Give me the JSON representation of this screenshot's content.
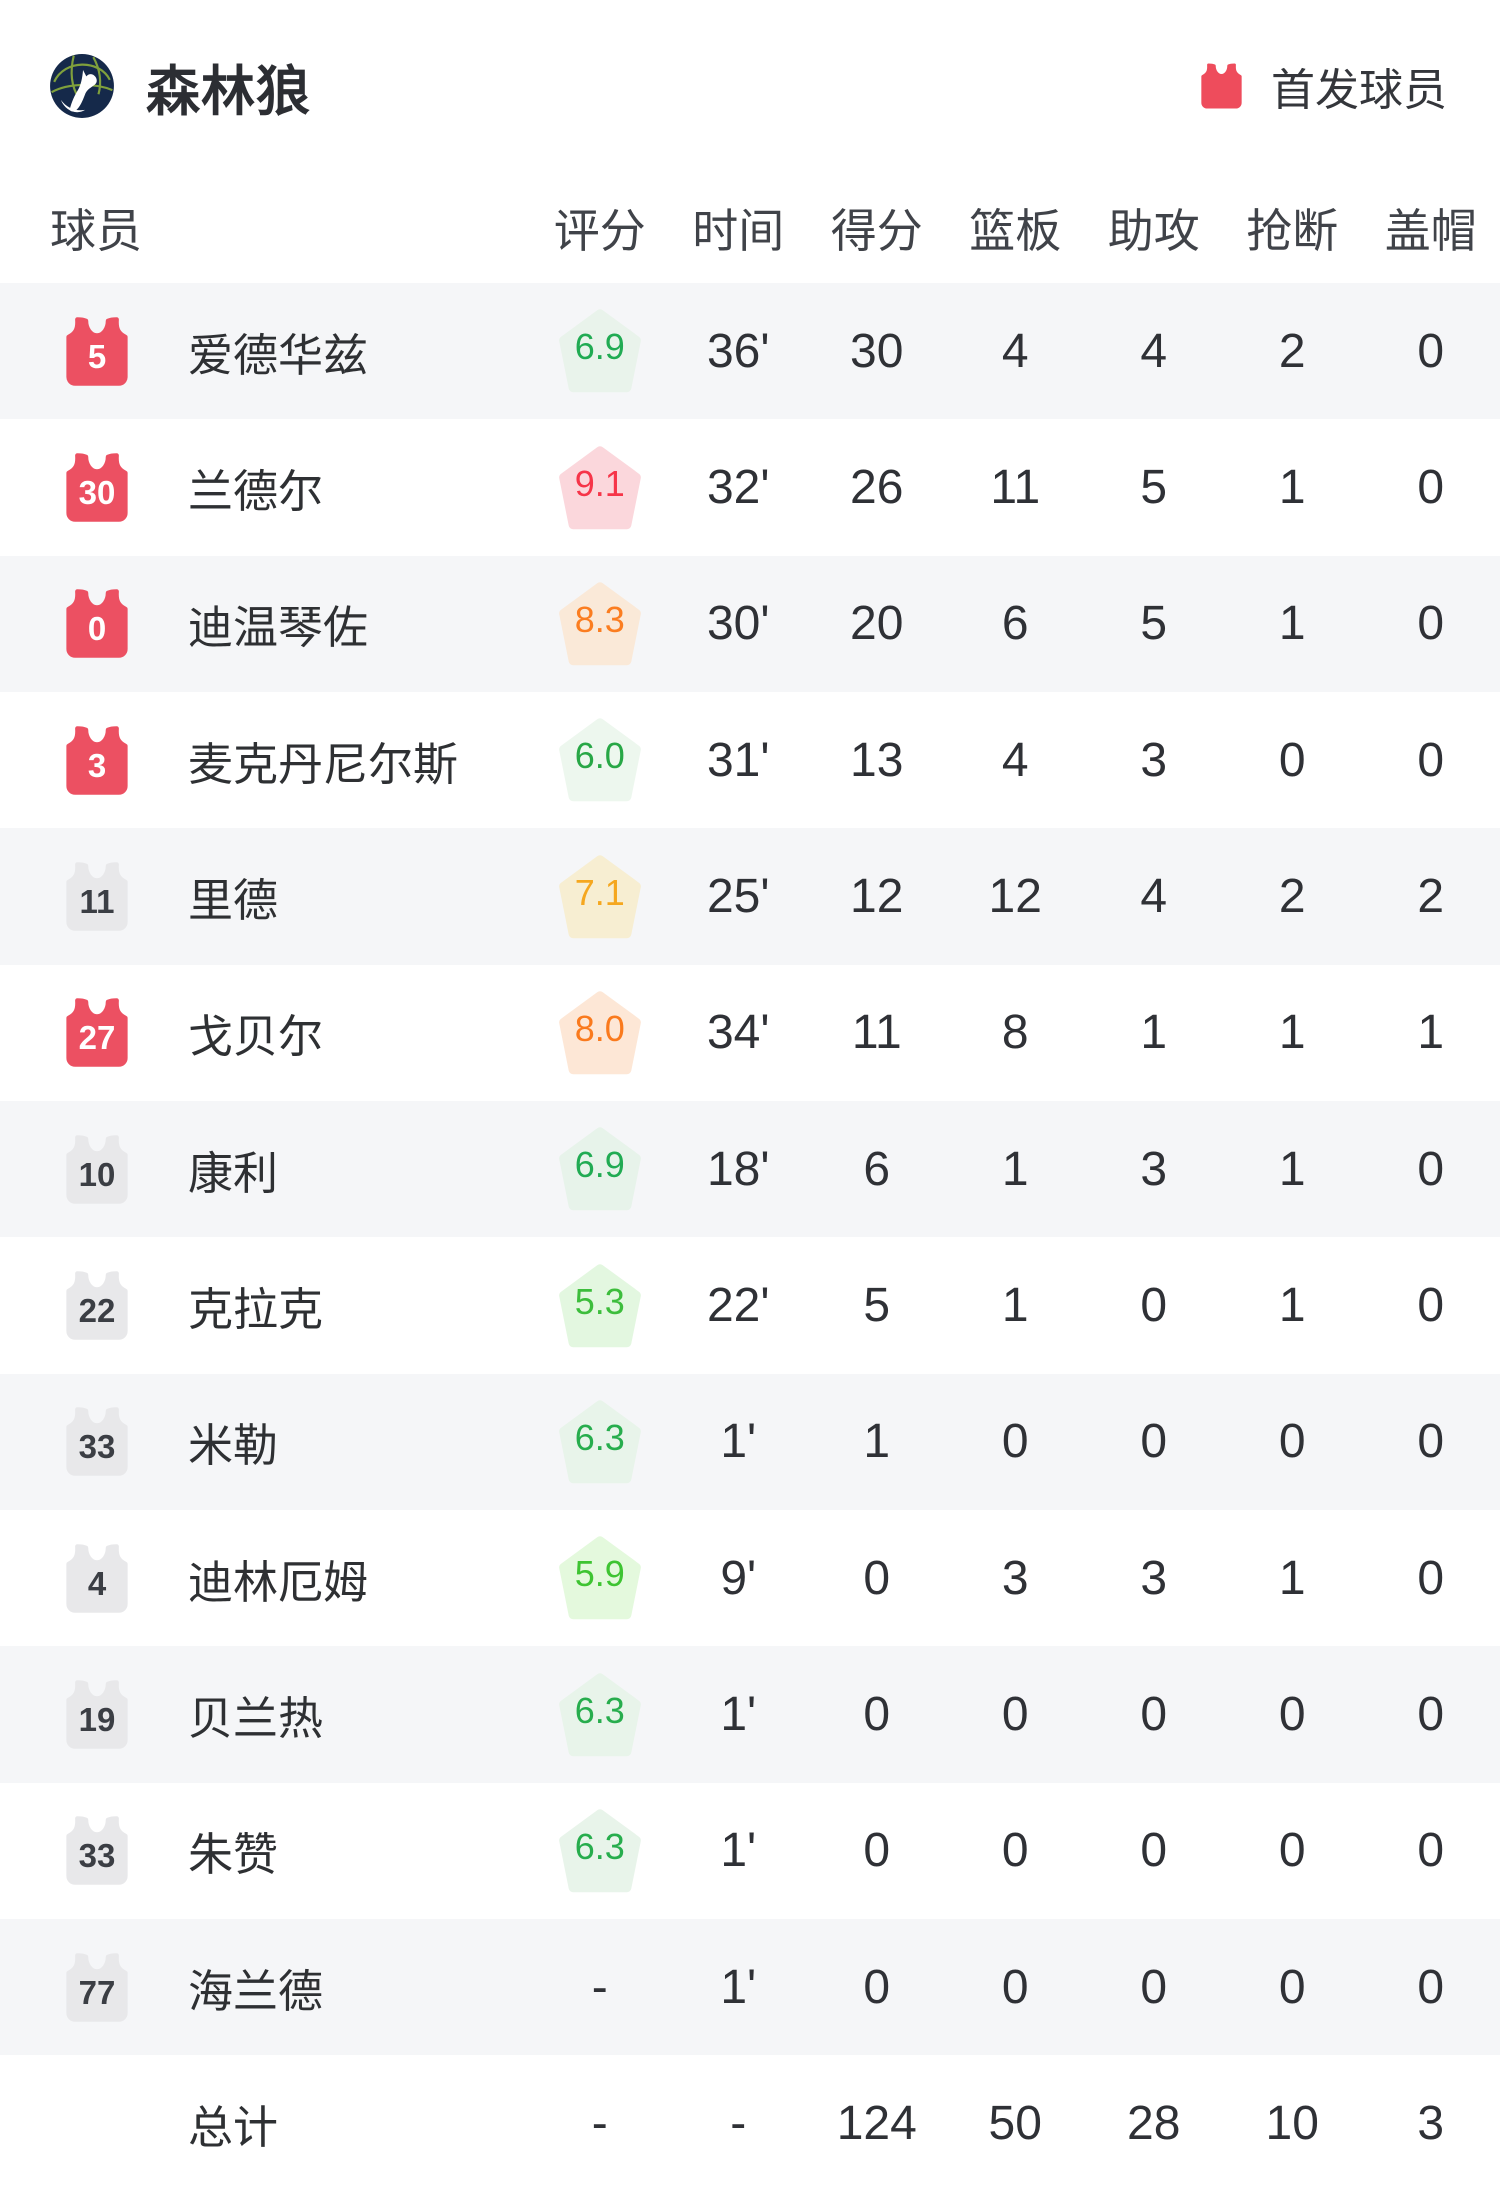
{
  "header": {
    "team_name": "森林狼",
    "legend_label": "首发球员"
  },
  "columns": {
    "player": "球员",
    "rating": "评分",
    "time": "时间",
    "points": "得分",
    "rebounds": "篮板",
    "assists": "助攻",
    "steals": "抢断",
    "blocks": "盖帽"
  },
  "colors": {
    "starter_jersey_red": "#ec5062",
    "bench_jersey_gray": "#e8e8ea",
    "starter_number_color": "#ffffff",
    "bench_number_color": "#3b3e44",
    "legend_jersey_red": "#ee4c5c",
    "alt_row_bg": "#f5f6f8",
    "logo_navy": "#15294a",
    "logo_green": "#7fa03c"
  },
  "players": [
    {
      "number": "5",
      "starter": true,
      "name": "爱德华兹",
      "rating": "6.9",
      "rating_bg": "#e9f3eb",
      "rating_color": "#21ab53",
      "time": "36'",
      "points": "30",
      "rebounds": "4",
      "assists": "4",
      "steals": "2",
      "blocks": "0"
    },
    {
      "number": "30",
      "starter": true,
      "name": "兰德尔",
      "rating": "9.1",
      "rating_bg": "#fbd7dc",
      "rating_color": "#f63549",
      "time": "32'",
      "points": "26",
      "rebounds": "11",
      "assists": "5",
      "steals": "1",
      "blocks": "0"
    },
    {
      "number": "0",
      "starter": true,
      "name": "迪温琴佐",
      "rating": "8.3",
      "rating_bg": "#fae9d8",
      "rating_color": "#fb7d20",
      "time": "30'",
      "points": "20",
      "rebounds": "6",
      "assists": "5",
      "steals": "1",
      "blocks": "0"
    },
    {
      "number": "3",
      "starter": true,
      "name": "麦克丹尼尔斯",
      "rating": "6.0",
      "rating_bg": "#edf7ee",
      "rating_color": "#28a746",
      "time": "31'",
      "points": "13",
      "rebounds": "4",
      "assists": "3",
      "steals": "0",
      "blocks": "0"
    },
    {
      "number": "11",
      "starter": false,
      "name": "里德",
      "rating": "7.1",
      "rating_bg": "#f7eed2",
      "rating_color": "#f5a71f",
      "time": "25'",
      "points": "12",
      "rebounds": "12",
      "assists": "4",
      "steals": "2",
      "blocks": "2"
    },
    {
      "number": "27",
      "starter": true,
      "name": "戈贝尔",
      "rating": "8.0",
      "rating_bg": "#fde7d6",
      "rating_color": "#fa7a1d",
      "time": "34'",
      "points": "11",
      "rebounds": "8",
      "assists": "1",
      "steals": "1",
      "blocks": "1"
    },
    {
      "number": "10",
      "starter": false,
      "name": "康利",
      "rating": "6.9",
      "rating_bg": "#e7f3ea",
      "rating_color": "#21ab53",
      "time": "18'",
      "points": "6",
      "rebounds": "1",
      "assists": "3",
      "steals": "1",
      "blocks": "0"
    },
    {
      "number": "22",
      "starter": false,
      "name": "克拉克",
      "rating": "5.3",
      "rating_bg": "#e3f7e0",
      "rating_color": "#3dbd3c",
      "time": "22'",
      "points": "5",
      "rebounds": "1",
      "assists": "0",
      "steals": "1",
      "blocks": "0"
    },
    {
      "number": "33",
      "starter": false,
      "name": "米勒",
      "rating": "6.3",
      "rating_bg": "#e8f4ea",
      "rating_color": "#27ad4d",
      "time": "1'",
      "points": "1",
      "rebounds": "0",
      "assists": "0",
      "steals": "0",
      "blocks": "0"
    },
    {
      "number": "4",
      "starter": false,
      "name": "迪林厄姆",
      "rating": "5.9",
      "rating_bg": "#e4f9dd",
      "rating_color": "#3ec432",
      "time": "9'",
      "points": "0",
      "rebounds": "3",
      "assists": "3",
      "steals": "1",
      "blocks": "0"
    },
    {
      "number": "19",
      "starter": false,
      "name": "贝兰热",
      "rating": "6.3",
      "rating_bg": "#e8f4ea",
      "rating_color": "#27ad4d",
      "time": "1'",
      "points": "0",
      "rebounds": "0",
      "assists": "0",
      "steals": "0",
      "blocks": "0"
    },
    {
      "number": "33",
      "starter": false,
      "name": "朱赞",
      "rating": "6.3",
      "rating_bg": "#e8f4ea",
      "rating_color": "#27ad4d",
      "time": "1'",
      "points": "0",
      "rebounds": "0",
      "assists": "0",
      "steals": "0",
      "blocks": "0"
    },
    {
      "number": "77",
      "starter": false,
      "name": "海兰德",
      "rating": "-",
      "rating_bg": null,
      "rating_color": "#2f3136",
      "time": "1'",
      "points": "0",
      "rebounds": "0",
      "assists": "0",
      "steals": "0",
      "blocks": "0"
    }
  ],
  "total": {
    "label": "总计",
    "rating": "-",
    "time": "-",
    "points": "124",
    "rebounds": "50",
    "assists": "28",
    "steals": "10",
    "blocks": "3"
  }
}
